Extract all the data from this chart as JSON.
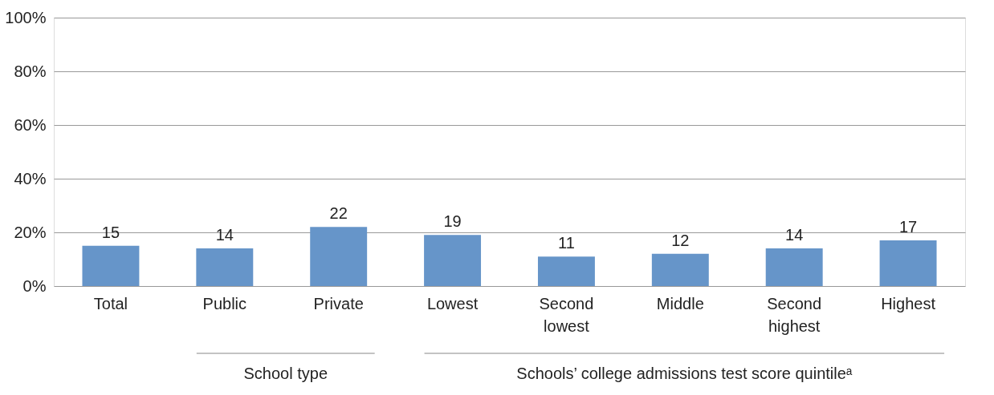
{
  "chart_data": {
    "type": "bar",
    "categories": [
      "Total",
      "Public",
      "Private",
      "Lowest",
      "Second lowest",
      "Middle",
      "Second highest",
      "Highest"
    ],
    "values": [
      15,
      14,
      22,
      19,
      11,
      12,
      14,
      17
    ],
    "color": "#6695c9",
    "ylim": [
      0,
      100
    ],
    "yticks": [
      {
        "value": 0,
        "label": "0%"
      },
      {
        "value": 20,
        "label": "20%"
      },
      {
        "value": 40,
        "label": "40%"
      },
      {
        "value": 60,
        "label": "60%"
      },
      {
        "value": 80,
        "label": "80%"
      },
      {
        "value": 100,
        "label": "100%"
      }
    ],
    "grid": "y",
    "data_labels": true,
    "annotations": [
      "School type",
      "Schools’ college admissions test score quintileᵃ"
    ]
  }
}
